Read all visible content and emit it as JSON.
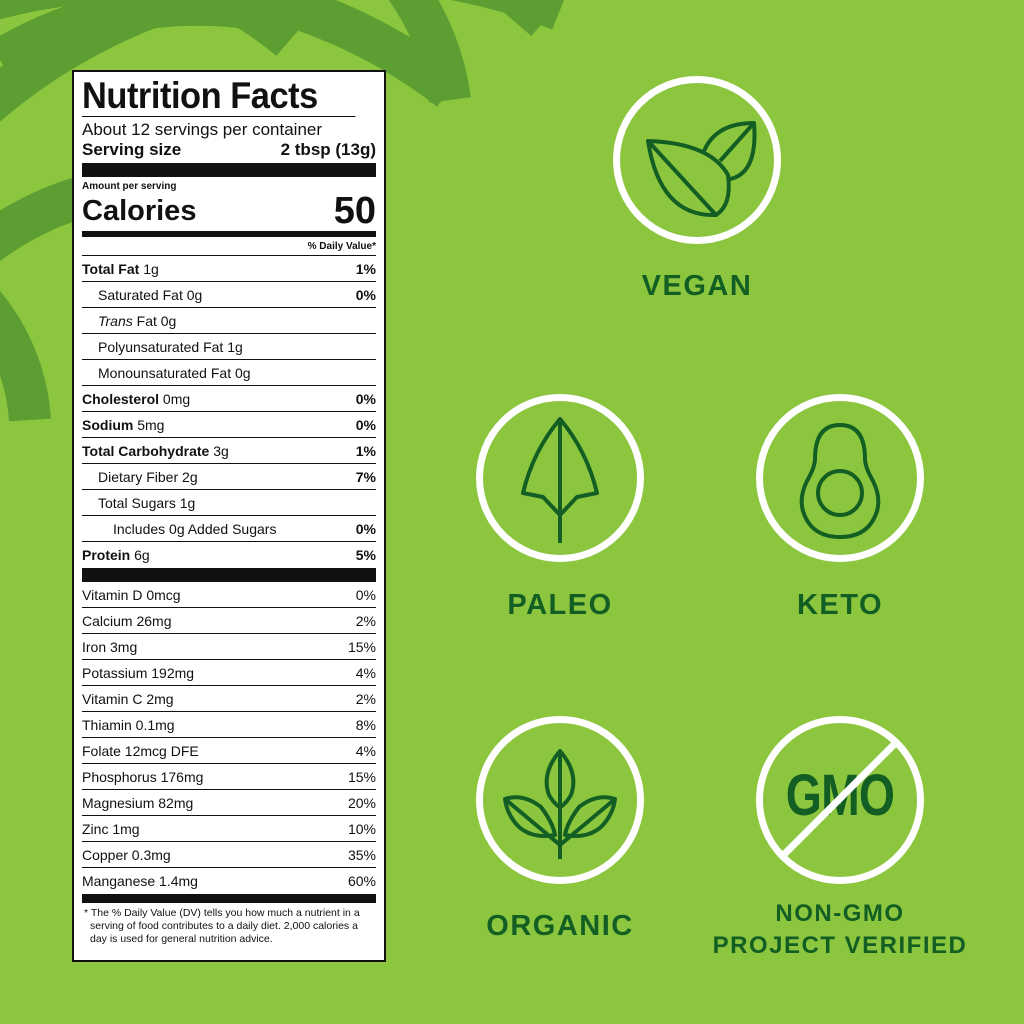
{
  "label": {
    "title": "Nutrition Facts",
    "servings": "About 12 servings per container",
    "serving_size_label": "Serving size",
    "serving_size_value": "2 tbsp (13g)",
    "amount_per_serving": "Amount per serving",
    "calories_label": "Calories",
    "calories_value": "50",
    "dv_header": "% Daily Value*",
    "nutrients": [
      {
        "label": "Total Fat",
        "amount": "1g",
        "dv": "1%",
        "bold": true,
        "indent": 0
      },
      {
        "label": "Saturated Fat",
        "amount": "0g",
        "dv": "0%",
        "bold": false,
        "indent": 1
      },
      {
        "italic": "Trans",
        "label": " Fat",
        "amount": "0g",
        "dv": "",
        "bold": false,
        "indent": 1
      },
      {
        "label": "Polyunsaturated Fat",
        "amount": "1g",
        "dv": "",
        "bold": false,
        "indent": 1
      },
      {
        "label": "Monounsaturated Fat",
        "amount": "0g",
        "dv": "",
        "bold": false,
        "indent": 1
      },
      {
        "label": "Cholesterol",
        "amount": "0mg",
        "dv": "0%",
        "bold": true,
        "indent": 0
      },
      {
        "label": "Sodium",
        "amount": "5mg",
        "dv": "0%",
        "bold": true,
        "indent": 0
      },
      {
        "label": "Total Carbohydrate",
        "amount": "3g",
        "dv": "1%",
        "bold": true,
        "indent": 0
      },
      {
        "label": "Dietary Fiber",
        "amount": "2g",
        "dv": "7%",
        "bold": false,
        "indent": 1
      },
      {
        "label": "Total Sugars",
        "amount": "1g",
        "dv": "",
        "bold": false,
        "indent": 1
      },
      {
        "label": "Includes 0g Added Sugars",
        "amount": "",
        "dv": "0%",
        "bold": false,
        "indent": 2
      },
      {
        "label": "Protein",
        "amount": "6g",
        "dv": "5%",
        "bold": true,
        "indent": 0
      }
    ],
    "vitamins": [
      {
        "label": "Vitamin D 0mcg",
        "dv": "0%"
      },
      {
        "label": "Calcium 26mg",
        "dv": "2%"
      },
      {
        "label": "Iron 3mg",
        "dv": "15%"
      },
      {
        "label": "Potassium 192mg",
        "dv": "4%"
      },
      {
        "label": "Vitamin C 2mg",
        "dv": "2%"
      },
      {
        "label": "Thiamin 0.1mg",
        "dv": "8%"
      },
      {
        "label": "Folate 12mcg DFE",
        "dv": "4%"
      },
      {
        "label": "Phosphorus 176mg",
        "dv": "15%"
      },
      {
        "label": "Magnesium 82mg",
        "dv": "20%"
      },
      {
        "label": "Zinc 1mg",
        "dv": "10%"
      },
      {
        "label": "Copper 0.3mg",
        "dv": "35%"
      },
      {
        "label": "Manganese 1.4mg",
        "dv": "60%"
      }
    ],
    "footnote": "* The % Daily Value (DV) tells you how much a nutrient in a serving of food contributes to a daily diet. 2,000 calories a day is used for general nutrition advice."
  },
  "badges": {
    "vegan": {
      "label": "VEGAN",
      "icon": "leaves-icon"
    },
    "paleo": {
      "label": "PALEO",
      "icon": "arrowhead-leaf-icon"
    },
    "keto": {
      "label": "KETO",
      "icon": "avocado-icon"
    },
    "organic": {
      "label": "ORGANIC",
      "icon": "sprout-icon"
    },
    "non_gmo": {
      "line1": "NON-GMO",
      "line2": "PROJECT VERIFIED",
      "icon": "no-gmo-icon",
      "icon_text": "GMO"
    }
  },
  "colors": {
    "background": "#8cc63f",
    "stripes": "#5c9e32",
    "badge_text": "#135e22",
    "circle": "#ffffff"
  }
}
